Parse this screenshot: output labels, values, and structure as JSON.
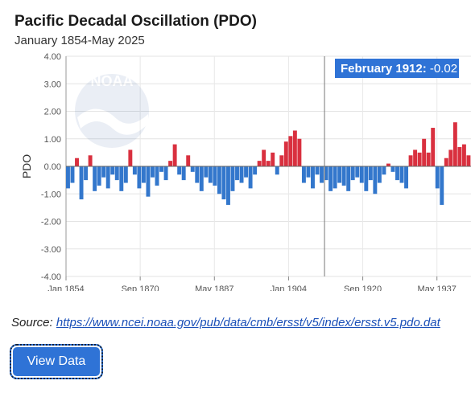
{
  "header": {
    "title": "Pacific Decadal Oscillation (PDO)",
    "subtitle": "January 1854-May 2025"
  },
  "source": {
    "label": "Source:",
    "link_text": "https://www.ncei.noaa.gov/pub/data/cmb/ersst/v5/index/ersst.v5.pdo.dat"
  },
  "actions": {
    "view_data_label": "View Data"
  },
  "tooltip": {
    "date": "February 1912",
    "value": "-0.02"
  },
  "watermark": {
    "text": "NOAA"
  },
  "colors": {
    "positive": "#d9303f",
    "negative": "#3377cc",
    "tooltip_bg": "#2f73d6"
  },
  "chart_data": {
    "type": "bar",
    "ylabel": "PDO",
    "xlabel": "",
    "ylim": [
      -4,
      4
    ],
    "yticks": [
      "4.00",
      "3.00",
      "2.00",
      "1.00",
      "0.00",
      "-1.00",
      "-2.00",
      "-3.00",
      "-4.00"
    ],
    "xticks": [
      "Jan 1854",
      "Sep 1870",
      "May 1887",
      "Jan 1904",
      "Sep 1920",
      "May 1937"
    ],
    "grid": true,
    "visible_range": [
      "1854-01",
      "1944-12"
    ],
    "series": [
      {
        "resolution": "annual mean (approximate, read from monthly bars)",
        "x": [
          1854,
          1855,
          1856,
          1857,
          1858,
          1859,
          1860,
          1861,
          1862,
          1863,
          1864,
          1865,
          1866,
          1867,
          1868,
          1869,
          1870,
          1871,
          1872,
          1873,
          1874,
          1875,
          1876,
          1877,
          1878,
          1879,
          1880,
          1881,
          1882,
          1883,
          1884,
          1885,
          1886,
          1887,
          1888,
          1889,
          1890,
          1891,
          1892,
          1893,
          1894,
          1895,
          1896,
          1897,
          1898,
          1899,
          1900,
          1901,
          1902,
          1903,
          1904,
          1905,
          1906,
          1907,
          1908,
          1909,
          1910,
          1911,
          1912,
          1913,
          1914,
          1915,
          1916,
          1917,
          1918,
          1919,
          1920,
          1921,
          1922,
          1923,
          1924,
          1925,
          1926,
          1927,
          1928,
          1929,
          1930,
          1931,
          1932,
          1933,
          1934,
          1935,
          1936,
          1937,
          1938,
          1939,
          1940,
          1941,
          1942,
          1943,
          1944
        ],
        "values": [
          -0.8,
          -0.6,
          0.3,
          -1.2,
          -0.5,
          0.4,
          -0.9,
          -0.7,
          -0.4,
          -0.8,
          -0.3,
          -0.5,
          -0.9,
          -0.6,
          0.6,
          -0.3,
          -0.8,
          -0.6,
          -1.1,
          -0.4,
          -0.7,
          -0.2,
          -0.5,
          0.2,
          0.8,
          -0.3,
          -0.5,
          0.4,
          -0.2,
          -0.6,
          -0.9,
          -0.4,
          -0.6,
          -0.7,
          -1.0,
          -1.2,
          -1.4,
          -0.9,
          -0.5,
          -0.6,
          -0.4,
          -0.8,
          -0.3,
          0.2,
          0.6,
          0.2,
          0.5,
          -0.3,
          0.4,
          0.9,
          1.1,
          1.3,
          1.0,
          -0.6,
          -0.4,
          -0.8,
          -0.3,
          -0.6,
          -0.5,
          -0.9,
          -0.8,
          -0.6,
          -0.7,
          -0.9,
          -0.5,
          -0.4,
          -0.6,
          -0.9,
          -0.5,
          -1.0,
          -0.6,
          -0.3,
          0.1,
          -0.2,
          -0.5,
          -0.6,
          -0.8,
          0.4,
          0.6,
          0.5,
          1.0,
          0.5,
          1.4,
          -0.8,
          -1.4,
          0.3,
          0.6,
          1.6,
          0.7,
          0.8,
          0.4
        ]
      }
    ]
  }
}
